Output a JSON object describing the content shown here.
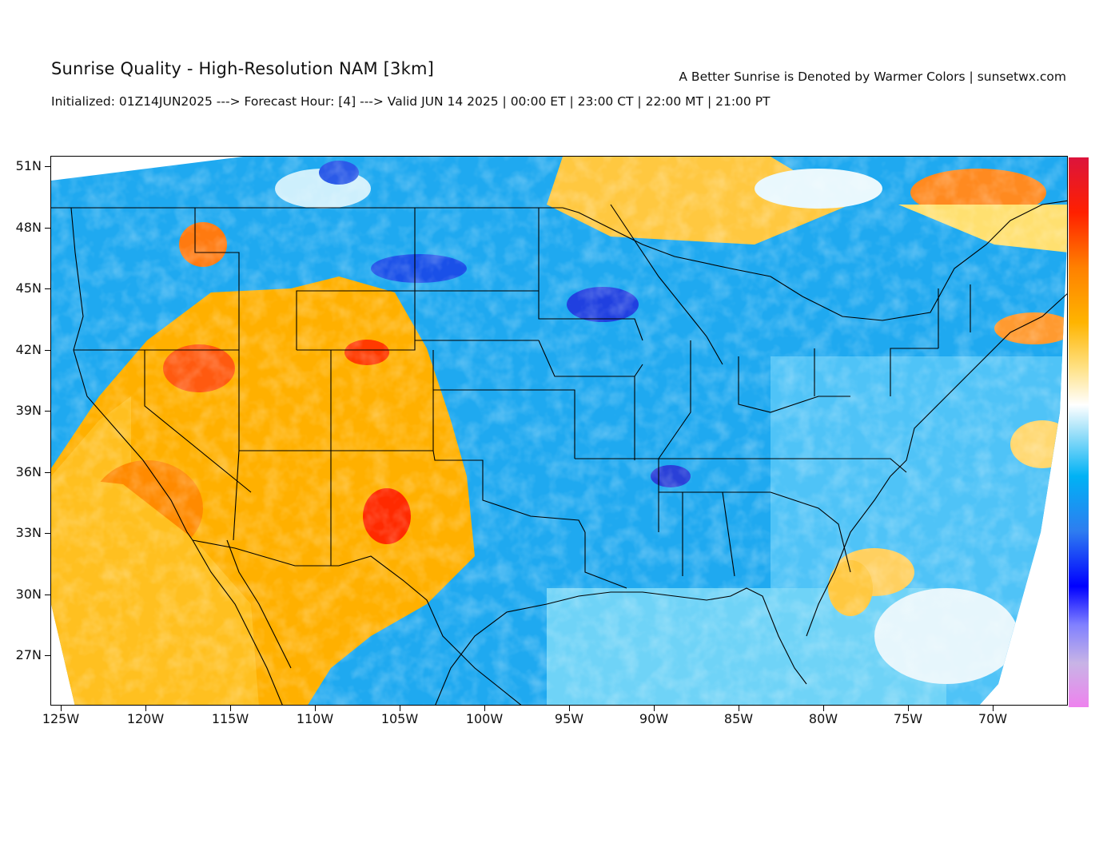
{
  "header": {
    "title": "Sunrise Quality - High-Resolution NAM [3km]",
    "subtitle_right": "A Better Sunrise is Denoted by Warmer Colors | sunsetwx.com",
    "init_line": "Initialized: 01Z14JUN2025 ---> Forecast Hour: [4] ---> Valid JUN 14 2025 | 00:00 ET | 23:00 CT | 22:00 MT | 21:00 PT"
  },
  "map": {
    "lat_ticks": [
      "51N",
      "48N",
      "45N",
      "42N",
      "39N",
      "36N",
      "33N",
      "30N",
      "27N"
    ],
    "lon_ticks": [
      "125W",
      "120W",
      "115W",
      "110W",
      "105W",
      "100W",
      "95W",
      "90W",
      "85W",
      "80W",
      "75W",
      "70W"
    ],
    "lat_range": [
      24.5,
      51.5
    ],
    "lon_range": [
      -125.3,
      -65.3
    ]
  },
  "colorbar": {
    "colors": [
      "#ee82ee",
      "#d7a0e6",
      "#c8b4e6",
      "#7070ff",
      "#0000ff",
      "#1a4fe8",
      "#2e7df0",
      "#00b2f5",
      "#6fd3f7",
      "#d6f1fb",
      "#ffffff",
      "#fff3c0",
      "#ffd34e",
      "#ffb400",
      "#ff9600",
      "#ff6a00",
      "#ff2e00",
      "#ff0000",
      "#dc143c"
    ]
  }
}
